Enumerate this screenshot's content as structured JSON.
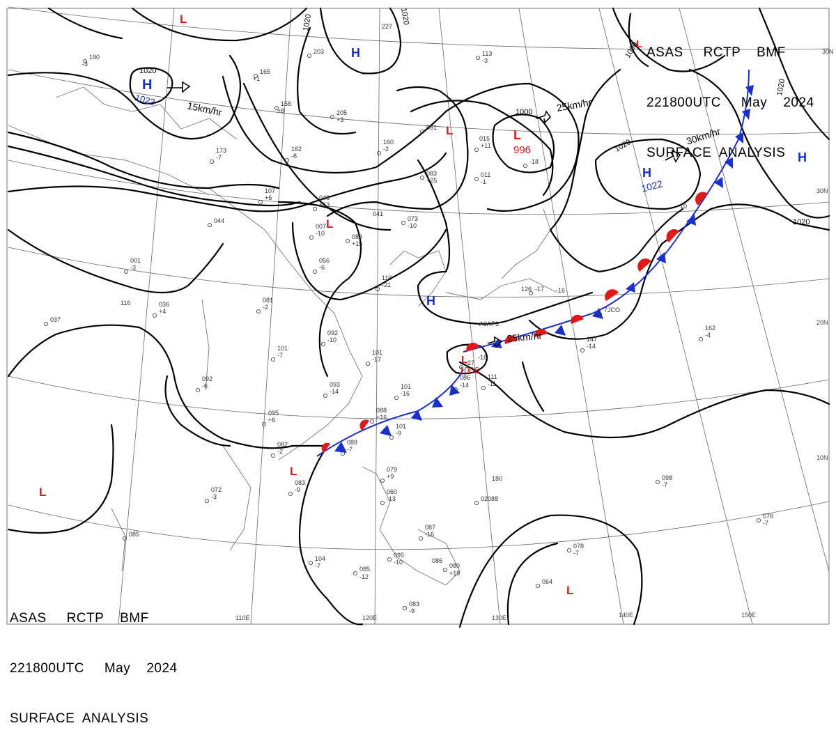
{
  "header_top": {
    "line1": "ASAS     RCTP    BMF",
    "line2": "221800UTC     May    2024",
    "line3": "SURFACE  ANALYSIS"
  },
  "header_bottom": {
    "line1": "ASAS     RCTP    BMF",
    "line2": "221800UTC     May    2024",
    "line3": "SURFACE  ANALYSIS"
  },
  "colors": {
    "high": "#1530c8",
    "low": "#e01818",
    "warm_front": "#e01818",
    "cold_front": "#1a2fd0",
    "isobar": "#000000",
    "grid": "#666666",
    "coast": "#777777"
  },
  "pressure_centers": [
    {
      "type": "H",
      "label": "H",
      "value": "1022",
      "color": "#1530c8"
    },
    {
      "type": "H",
      "label": "H",
      "value": "",
      "color": "#1530c8"
    },
    {
      "type": "H",
      "label": "H",
      "value": "1022",
      "color": "#1530c8"
    },
    {
      "type": "H",
      "label": "H",
      "value": "",
      "color": "#1530c8"
    },
    {
      "type": "H",
      "label": "H",
      "value": "",
      "color": "#1530c8"
    },
    {
      "type": "L",
      "label": "L",
      "value": "996",
      "color": "#e01818"
    },
    {
      "type": "L",
      "label": "L",
      "value": "",
      "color": "#e01818"
    },
    {
      "type": "L",
      "label": "L",
      "value": "",
      "color": "#e01818"
    },
    {
      "type": "L",
      "label": "L",
      "value": "1006",
      "color": "#e01818"
    },
    {
      "type": "L",
      "label": "L",
      "value": "",
      "color": "#e01818"
    },
    {
      "type": "L",
      "label": "L",
      "value": "",
      "color": "#e01818"
    },
    {
      "type": "L",
      "label": "L",
      "value": "",
      "color": "#e01818"
    },
    {
      "type": "L",
      "label": "L",
      "value": "",
      "color": "#e01818"
    },
    {
      "type": "L",
      "label": "L",
      "value": "",
      "color": "#e01818"
    }
  ],
  "movement_labels": [
    "15km/hr",
    "25km/hr",
    "30km/hr",
    "25km/hr"
  ],
  "isobar_labels": [
    "1020",
    "1020",
    "1020",
    "1000",
    "1020",
    "1020",
    "1000",
    "1020"
  ],
  "latitude_labels": [
    "30N",
    "20N",
    "10N"
  ],
  "longitude_labels": [
    "110E",
    "120E",
    "130E",
    "140E",
    "150E"
  ],
  "stations": [
    {
      "t": "190"
    },
    {
      "t": "-3"
    },
    {
      "t": "165"
    },
    {
      "t": "+1"
    },
    {
      "t": "158"
    },
    {
      "t": "+8"
    },
    {
      "t": "203"
    },
    {
      "t": "227"
    },
    {
      "t": "205"
    },
    {
      "t": "+3"
    },
    {
      "t": "113"
    },
    {
      "t": "-3"
    },
    {
      "t": "081"
    },
    {
      "t": "015"
    },
    {
      "t": "+11"
    },
    {
      "t": "160"
    },
    {
      "t": "-2"
    },
    {
      "t": "162"
    },
    {
      "t": "-8"
    },
    {
      "t": "173"
    },
    {
      "t": "-7"
    },
    {
      "t": "107"
    },
    {
      "t": "+6"
    },
    {
      "t": "046"
    },
    {
      "t": "+13"
    },
    {
      "t": "007"
    },
    {
      "t": "-10"
    },
    {
      "t": "041"
    },
    {
      "t": "073"
    },
    {
      "t": "-10"
    },
    {
      "t": "088"
    },
    {
      "t": "+15"
    },
    {
      "t": "083"
    },
    {
      "t": "+25"
    },
    {
      "t": "011"
    },
    {
      "t": "-1"
    },
    {
      "t": "044"
    },
    {
      "t": "001"
    },
    {
      "t": "-3"
    },
    {
      "t": "056"
    },
    {
      "t": "-6"
    },
    {
      "t": "110"
    },
    {
      "t": "-21"
    },
    {
      "t": "036"
    },
    {
      "t": "+4"
    },
    {
      "t": "081"
    },
    {
      "t": "-2"
    },
    {
      "t": "116"
    },
    {
      "t": "037"
    },
    {
      "t": "092"
    },
    {
      "t": "-10"
    },
    {
      "t": "101"
    },
    {
      "t": "-7"
    },
    {
      "t": "101"
    },
    {
      "t": "-17"
    },
    {
      "t": "093"
    },
    {
      "t": "-14"
    },
    {
      "t": "092"
    },
    {
      "t": "-6"
    },
    {
      "t": "101"
    },
    {
      "t": "-16"
    },
    {
      "t": "088"
    },
    {
      "t": "+16"
    },
    {
      "t": "101"
    },
    {
      "t": "-9"
    },
    {
      "t": "095"
    },
    {
      "t": "+6"
    },
    {
      "t": "082"
    },
    {
      "t": "-2"
    },
    {
      "t": "089"
    },
    {
      "t": "-7"
    },
    {
      "t": "072"
    },
    {
      "t": "-3"
    },
    {
      "t": "083"
    },
    {
      "t": "-9"
    },
    {
      "t": "079"
    },
    {
      "t": "+9"
    },
    {
      "t": "060"
    },
    {
      "t": "-13"
    },
    {
      "t": "180"
    },
    {
      "t": "02088"
    },
    {
      "t": "147"
    },
    {
      "t": "-14"
    },
    {
      "t": "162"
    },
    {
      "t": "-4"
    },
    {
      "t": "111"
    },
    {
      "t": "-11"
    },
    {
      "t": "086"
    },
    {
      "t": "-14"
    },
    {
      "t": "-18"
    },
    {
      "t": "098"
    },
    {
      "t": "-7"
    },
    {
      "t": "076"
    },
    {
      "t": "-7"
    },
    {
      "t": "078"
    },
    {
      "t": "-7"
    },
    {
      "t": "064"
    },
    {
      "t": "087"
    },
    {
      "t": "-16"
    },
    {
      "t": "086"
    },
    {
      "t": "080"
    },
    {
      "t": "+19"
    },
    {
      "t": "095"
    },
    {
      "t": "-10"
    },
    {
      "t": "085"
    },
    {
      "t": "-12"
    },
    {
      "t": "104"
    },
    {
      "t": "-7"
    },
    {
      "t": "083"
    },
    {
      "t": "-9"
    },
    {
      "t": "085"
    },
    {
      "t": "126"
    },
    {
      "t": "-17"
    },
    {
      "t": "-16"
    },
    {
      "t": "-18"
    },
    {
      "t": "-10"
    },
    {
      "t": "7JCO"
    },
    {
      "t": "A6AP3"
    },
    {
      "t": "-27"
    },
    {
      "t": "-18"
    }
  ]
}
